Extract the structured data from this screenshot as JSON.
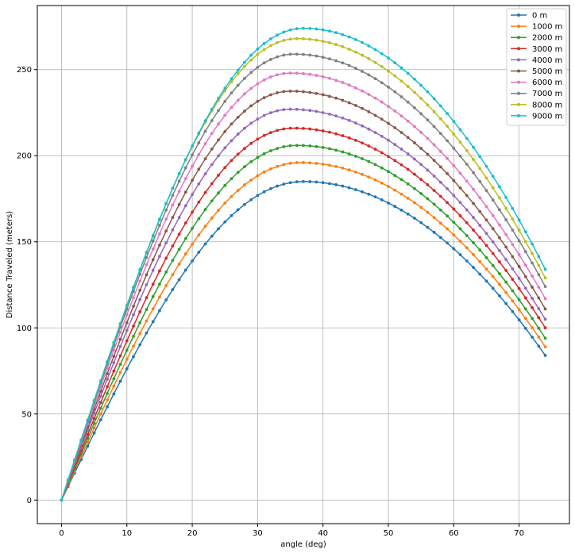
{
  "chart_data": {
    "type": "line",
    "title": "",
    "xlabel": "angle (deg)",
    "ylabel": "Distance Traveled (meters)",
    "xlim": [
      -3.7,
      77.7
    ],
    "ylim": [
      -13.7,
      287.2
    ],
    "xticks": [
      0,
      10,
      20,
      30,
      40,
      50,
      60,
      70
    ],
    "yticks": [
      0,
      50,
      100,
      150,
      200,
      250
    ],
    "grid": true,
    "legend_position": "top-right",
    "marker": "circle",
    "x_start": 0,
    "x_end": 74,
    "x_step": 1,
    "series": [
      {
        "name": "0 m",
        "color": "#1f77b4",
        "peak_x": 37,
        "peak_y": 185,
        "end_y": 84
      },
      {
        "name": "1000 m",
        "color": "#ff7f0e",
        "peak_x": 36.5,
        "peak_y": 196,
        "end_y": 89
      },
      {
        "name": "2000 m",
        "color": "#2ca02c",
        "peak_x": 36,
        "peak_y": 206,
        "end_y": 94
      },
      {
        "name": "3000 m",
        "color": "#d62728",
        "peak_x": 35.5,
        "peak_y": 216,
        "end_y": 100
      },
      {
        "name": "4000 m",
        "color": "#9467bd",
        "peak_x": 35,
        "peak_y": 227,
        "end_y": 105
      },
      {
        "name": "5000 m",
        "color": "#8c564b",
        "peak_x": 35,
        "peak_y": 237.5,
        "end_y": 111
      },
      {
        "name": "6000 m",
        "color": "#e377c2",
        "peak_x": 35,
        "peak_y": 248,
        "end_y": 117
      },
      {
        "name": "7000 m",
        "color": "#7f7f7f",
        "peak_x": 35.5,
        "peak_y": 259,
        "end_y": 124
      },
      {
        "name": "8000 m",
        "color": "#bcbd22",
        "peak_x": 36,
        "peak_y": 268,
        "end_y": 129
      },
      {
        "name": "9000 m",
        "color": "#17becf",
        "peak_x": 37,
        "peak_y": 274,
        "end_y": 134
      }
    ]
  }
}
